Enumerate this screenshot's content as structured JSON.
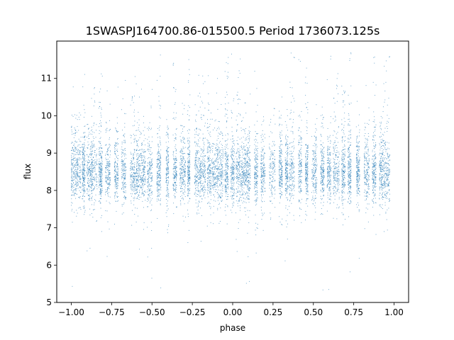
{
  "chart_data": {
    "type": "scatter",
    "title": "1SWASPJ164700.86-015500.5 Period 1736073.125s",
    "xlabel": "phase",
    "ylabel": "flux",
    "xlim": [
      -1.09,
      1.09
    ],
    "ylim": [
      5,
      12
    ],
    "x_ticks": [
      -1.0,
      -0.75,
      -0.5,
      -0.25,
      0.0,
      0.25,
      0.5,
      0.75,
      1.0
    ],
    "x_tick_labels": [
      "−1.00",
      "−0.75",
      "−0.50",
      "−0.25",
      "0.00",
      "0.25",
      "0.50",
      "0.75",
      "1.00"
    ],
    "y_ticks": [
      5,
      6,
      7,
      8,
      9,
      10,
      11
    ],
    "y_tick_labels": [
      "5",
      "6",
      "7",
      "8",
      "9",
      "10",
      "11"
    ],
    "grid": false,
    "legend": "none",
    "point_color": "#1f77b4",
    "x_range": [
      -1.0,
      1.0
    ],
    "flux_median": 8.45,
    "flux_core_range": [
      7.7,
      9.3
    ],
    "flux_extreme_range": [
      5.3,
      11.7
    ]
  }
}
